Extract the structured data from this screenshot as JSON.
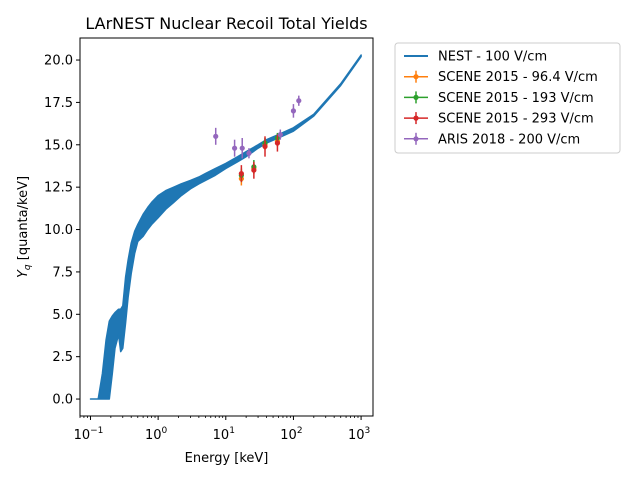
{
  "chart_data": {
    "type": "scatter",
    "title": "LArNEST Nuclear Recoil Total Yields",
    "xlabel": "Energy [keV]",
    "ylabel_main": "Y",
    "ylabel_sub": "q",
    "ylabel_rest": " [quanta/keV]",
    "xscale": "log",
    "xlim": [
      0.07,
      1500
    ],
    "ylim": [
      -1.0,
      21.3
    ],
    "grid": false,
    "legend_position": "outside-right-top",
    "x_ticks": [
      {
        "value": 0.1,
        "base": "10",
        "exp": "−1"
      },
      {
        "value": 1,
        "base": "10",
        "exp": "0"
      },
      {
        "value": 10,
        "base": "10",
        "exp": "1"
      },
      {
        "value": 100,
        "base": "10",
        "exp": "2"
      },
      {
        "value": 1000,
        "base": "10",
        "exp": "3"
      }
    ],
    "y_ticks": [
      {
        "value": 0,
        "label": "0.0"
      },
      {
        "value": 2.5,
        "label": "2.5"
      },
      {
        "value": 5,
        "label": "5.0"
      },
      {
        "value": 7.5,
        "label": "7.5"
      },
      {
        "value": 10,
        "label": "10.0"
      },
      {
        "value": 12.5,
        "label": "12.5"
      },
      {
        "value": 15,
        "label": "15.0"
      },
      {
        "value": 17.5,
        "label": "17.5"
      },
      {
        "value": 20,
        "label": "20.0"
      }
    ],
    "band": {
      "name": "NEST - 100 V/cm",
      "color": "#1f77b4",
      "x": [
        0.1,
        0.13,
        0.15,
        0.17,
        0.19,
        0.21,
        0.23,
        0.26,
        0.28,
        0.3,
        0.33,
        0.36,
        0.4,
        0.45,
        0.5,
        0.6,
        0.7,
        0.8,
        1.0,
        1.3,
        1.7,
        2.2,
        3.0,
        4.0,
        5.0,
        7.0,
        10,
        15,
        20,
        30,
        40,
        60,
        100,
        200,
        500,
        1000
      ],
      "upper": [
        0.0,
        0.0,
        1.5,
        3.5,
        4.6,
        4.9,
        5.1,
        5.3,
        5.3,
        5.5,
        7.2,
        8.2,
        9.2,
        9.9,
        10.3,
        10.9,
        11.3,
        11.6,
        12.0,
        12.3,
        12.5,
        12.7,
        12.9,
        13.1,
        13.3,
        13.6,
        13.9,
        14.3,
        14.6,
        15.0,
        15.3,
        15.6,
        16.0,
        16.8,
        18.6,
        20.3
      ],
      "lower": [
        0.0,
        0.0,
        0.0,
        0.0,
        0.0,
        1.5,
        3.0,
        3.8,
        2.8,
        3.0,
        4.5,
        6.0,
        7.4,
        8.6,
        9.3,
        9.6,
        10.0,
        10.3,
        10.7,
        11.2,
        11.6,
        12.0,
        12.4,
        12.7,
        12.9,
        13.2,
        13.6,
        14.0,
        14.3,
        14.8,
        15.1,
        15.4,
        15.8,
        16.7,
        18.5,
        20.2
      ]
    },
    "series": [
      {
        "name": "SCENE 2015 - 96.4 V/cm",
        "color": "#ff7f0e",
        "points": [
          {
            "x": 17,
            "y": 13.0,
            "err": 0.4
          },
          {
            "x": 26,
            "y": 13.6,
            "err": 0.3
          },
          {
            "x": 38,
            "y": 15.0,
            "err": 0.3
          },
          {
            "x": 58,
            "y": 15.2,
            "err": 0.3
          }
        ]
      },
      {
        "name": "SCENE 2015 - 193 V/cm",
        "color": "#2ca02c",
        "points": [
          {
            "x": 17,
            "y": 13.2,
            "err": 0.4
          },
          {
            "x": 26,
            "y": 13.7,
            "err": 0.4
          },
          {
            "x": 38,
            "y": 15.1,
            "err": 0.3
          },
          {
            "x": 58,
            "y": 15.4,
            "err": 0.3
          }
        ]
      },
      {
        "name": "SCENE 2015 - 293 V/cm",
        "color": "#d62728",
        "points": [
          {
            "x": 17,
            "y": 13.3,
            "err": 0.5
          },
          {
            "x": 26,
            "y": 13.5,
            "err": 0.5
          },
          {
            "x": 38,
            "y": 14.9,
            "err": 0.6
          },
          {
            "x": 58,
            "y": 15.1,
            "err": 0.5
          }
        ]
      },
      {
        "name": "ARIS 2018 - 200 V/cm",
        "color": "#9467bd",
        "points": [
          {
            "x": 7.1,
            "y": 15.5,
            "err": 0.5
          },
          {
            "x": 13.5,
            "y": 14.8,
            "err": 0.5
          },
          {
            "x": 17.5,
            "y": 14.8,
            "err": 0.6
          },
          {
            "x": 22,
            "y": 14.5,
            "err": 0.3
          },
          {
            "x": 64,
            "y": 15.6,
            "err": 0.3
          },
          {
            "x": 100,
            "y": 17.0,
            "err": 0.4
          },
          {
            "x": 120,
            "y": 17.6,
            "err": 0.3
          }
        ]
      }
    ]
  }
}
